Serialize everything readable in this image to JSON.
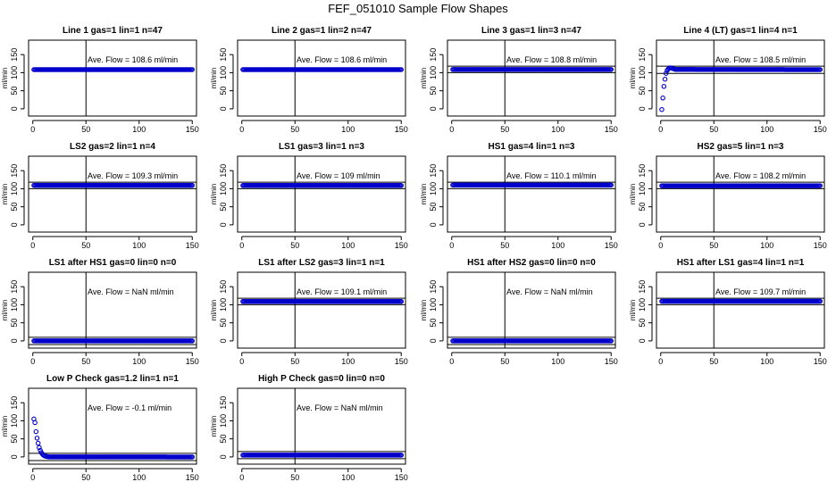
{
  "title": "FEF_051010  Sample Flow Shapes",
  "colors": {
    "points": "#0000cc",
    "lines": "#000000",
    "background": "#ffffff"
  },
  "chart_data": [
    {
      "type": "scatter",
      "title": "Line 1 gas=1 lin=1 n=47",
      "annotation": "Ave. Flow =  108.6  ml/min",
      "ylabel": "ml/min",
      "xlim": [
        -4,
        154
      ],
      "ylim": [
        -20,
        190
      ],
      "xticks": [
        0,
        50,
        100,
        150
      ],
      "yticks": [
        0,
        50,
        100,
        150
      ],
      "vline": 50,
      "hlines": [],
      "x": [
        1,
        150
      ],
      "y": [
        108.6,
        108.6
      ]
    },
    {
      "type": "scatter",
      "title": "Line 2 gas=1 lin=2 n=47",
      "annotation": "Ave. Flow =  108.6  ml/min",
      "ylabel": "ml/min",
      "xlim": [
        -4,
        154
      ],
      "ylim": [
        -20,
        190
      ],
      "xticks": [
        0,
        50,
        100,
        150
      ],
      "yticks": [
        0,
        50,
        100,
        150
      ],
      "vline": 50,
      "hlines": [],
      "x": [
        1,
        150
      ],
      "y": [
        108.6,
        108.6
      ]
    },
    {
      "type": "scatter",
      "title": "Line 3 gas=1 lin=3 n=47",
      "annotation": "Ave. Flow =  108.8  ml/min",
      "ylabel": "ml/min",
      "xlim": [
        -4,
        154
      ],
      "ylim": [
        -20,
        190
      ],
      "xticks": [
        0,
        50,
        100,
        150
      ],
      "yticks": [
        0,
        50,
        100,
        150
      ],
      "vline": 50,
      "hlines": [
        100,
        118
      ],
      "x": [
        1,
        150
      ],
      "y": [
        108.8,
        108.8
      ]
    },
    {
      "type": "scatter",
      "title": "Line 4 (LT) gas=1 lin=4 n=1",
      "annotation": "Ave. Flow =  108.5  ml/min",
      "ylabel": "ml/min",
      "xlim": [
        -4,
        154
      ],
      "ylim": [
        -20,
        190
      ],
      "xticks": [
        0,
        50,
        100,
        150
      ],
      "yticks": [
        0,
        50,
        100,
        150
      ],
      "vline": 50,
      "hlines": [
        98,
        118
      ],
      "x": [
        1,
        2,
        3,
        4,
        5,
        6,
        7,
        8,
        9,
        10,
        11,
        12,
        13,
        14,
        15,
        150
      ],
      "y": [
        -2,
        30,
        62,
        82,
        98,
        106,
        110,
        112,
        113,
        113,
        112,
        111,
        110,
        109,
        109,
        108.5
      ]
    },
    {
      "type": "scatter",
      "title": "LS2 gas=2 lin=1 n=4",
      "annotation": "Ave. Flow =  109.3  ml/min",
      "ylabel": "ml/min",
      "xlim": [
        -4,
        154
      ],
      "ylim": [
        -20,
        190
      ],
      "xticks": [
        0,
        50,
        100,
        150
      ],
      "yticks": [
        0,
        50,
        100,
        150
      ],
      "vline": 50,
      "hlines": [
        100,
        118
      ],
      "x": [
        1,
        150
      ],
      "y": [
        109.3,
        109.3
      ]
    },
    {
      "type": "scatter",
      "title": "LS1 gas=3 lin=1 n=3",
      "annotation": "Ave. Flow =  109  ml/min",
      "ylabel": "ml/min",
      "xlim": [
        -4,
        154
      ],
      "ylim": [
        -20,
        190
      ],
      "xticks": [
        0,
        50,
        100,
        150
      ],
      "yticks": [
        0,
        50,
        100,
        150
      ],
      "vline": 50,
      "hlines": [
        100,
        118
      ],
      "x": [
        1,
        150
      ],
      "y": [
        109,
        109
      ]
    },
    {
      "type": "scatter",
      "title": "HS1 gas=4 lin=1 n=3",
      "annotation": "Ave. Flow =  110.1  ml/min",
      "ylabel": "ml/min",
      "xlim": [
        -4,
        154
      ],
      "ylim": [
        -20,
        190
      ],
      "xticks": [
        0,
        50,
        100,
        150
      ],
      "yticks": [
        0,
        50,
        100,
        150
      ],
      "vline": 50,
      "hlines": [
        100,
        118
      ],
      "x": [
        1,
        150
      ],
      "y": [
        110.1,
        110.1
      ]
    },
    {
      "type": "scatter",
      "title": "HS2 gas=5 lin=1 n=3",
      "annotation": "Ave. Flow =  108.2  ml/min",
      "ylabel": "ml/min",
      "xlim": [
        -4,
        154
      ],
      "ylim": [
        -20,
        190
      ],
      "xticks": [
        0,
        50,
        100,
        150
      ],
      "yticks": [
        0,
        50,
        100,
        150
      ],
      "vline": 50,
      "hlines": [
        100,
        118
      ],
      "x": [
        1,
        150
      ],
      "y": [
        108.2,
        108.2
      ]
    },
    {
      "type": "scatter",
      "title": "LS1 after HS1 gas=0 lin=0 n=0",
      "annotation": "Ave. Flow =  NaN  ml/min",
      "ylabel": "ml/min",
      "xlim": [
        -4,
        154
      ],
      "ylim": [
        -20,
        190
      ],
      "xticks": [
        0,
        50,
        100,
        150
      ],
      "yticks": [
        0,
        50,
        100,
        150
      ],
      "vline": 50,
      "hlines": [
        -10,
        10
      ],
      "x": [
        1,
        150
      ],
      "y": [
        0,
        0
      ]
    },
    {
      "type": "scatter",
      "title": "LS1 after LS2 gas=3 lin=1 n=1",
      "annotation": "Ave. Flow =  109.1  ml/min",
      "ylabel": "ml/min",
      "xlim": [
        -4,
        154
      ],
      "ylim": [
        -20,
        190
      ],
      "xticks": [
        0,
        50,
        100,
        150
      ],
      "yticks": [
        0,
        50,
        100,
        150
      ],
      "vline": 50,
      "hlines": [
        100,
        118
      ],
      "x": [
        1,
        150
      ],
      "y": [
        109.1,
        109.1
      ]
    },
    {
      "type": "scatter",
      "title": "HS1 after HS2 gas=0 lin=0 n=0",
      "annotation": "Ave. Flow =  NaN  ml/min",
      "ylabel": "ml/min",
      "xlim": [
        -4,
        154
      ],
      "ylim": [
        -20,
        190
      ],
      "xticks": [
        0,
        50,
        100,
        150
      ],
      "yticks": [
        0,
        50,
        100,
        150
      ],
      "vline": 50,
      "hlines": [
        -10,
        10
      ],
      "x": [
        1,
        150
      ],
      "y": [
        0,
        0
      ]
    },
    {
      "type": "scatter",
      "title": "HS1 after LS1 gas=4 lin=1 n=1",
      "annotation": "Ave. Flow =  109.7  ml/min",
      "ylabel": "ml/min",
      "xlim": [
        -4,
        154
      ],
      "ylim": [
        -20,
        190
      ],
      "xticks": [
        0,
        50,
        100,
        150
      ],
      "yticks": [
        0,
        50,
        100,
        150
      ],
      "vline": 50,
      "hlines": [
        100,
        118
      ],
      "x": [
        1,
        150
      ],
      "y": [
        109.7,
        109.7
      ]
    },
    {
      "type": "scatter",
      "title": "Low P Check gas=1.2 lin=1 n=1",
      "annotation": "Ave. Flow =  -0.1  ml/min",
      "ylabel": "ml/min",
      "xlim": [
        -4,
        154
      ],
      "ylim": [
        -20,
        190
      ],
      "xticks": [
        0,
        50,
        100,
        150
      ],
      "yticks": [
        0,
        50,
        100,
        150
      ],
      "vline": 50,
      "hlines": [
        -10,
        10
      ],
      "x": [
        1,
        2,
        3,
        4,
        5,
        6,
        7,
        8,
        9,
        10,
        11,
        12,
        13,
        14,
        15,
        16,
        17,
        18,
        19,
        20,
        150
      ],
      "y": [
        105,
        95,
        70,
        52,
        38,
        26,
        18,
        12,
        8,
        5,
        3,
        2,
        1,
        1,
        0,
        0,
        0,
        0,
        0,
        0,
        -0.1
      ]
    },
    {
      "type": "scatter",
      "title": "High P Check gas=0 lin=0 n=0",
      "annotation": "Ave. Flow =  NaN  ml/min",
      "ylabel": "ml/min",
      "xlim": [
        -4,
        154
      ],
      "ylim": [
        -20,
        190
      ],
      "xticks": [
        0,
        50,
        100,
        150
      ],
      "yticks": [
        0,
        50,
        100,
        150
      ],
      "vline": 50,
      "hlines": [
        -5,
        15
      ],
      "x": [
        1,
        150
      ],
      "y": [
        5,
        5
      ]
    }
  ]
}
